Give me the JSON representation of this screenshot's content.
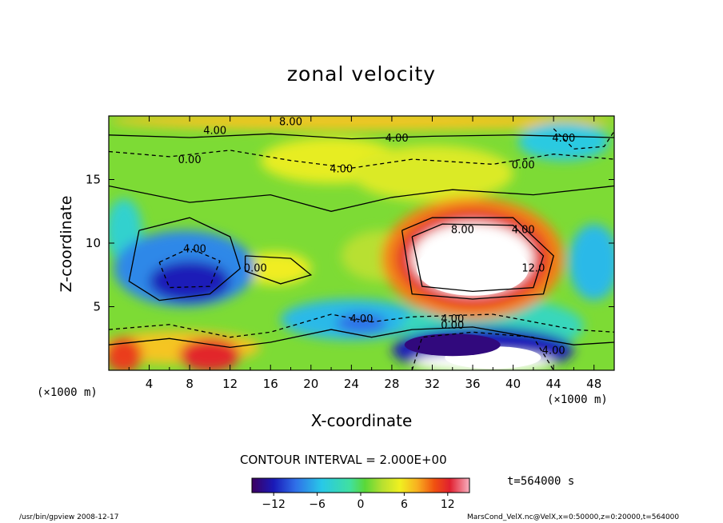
{
  "chart_data": {
    "type": "heatmap",
    "title": "zonal velocity",
    "xlabel": "X-coordinate",
    "ylabel": "Z-coordinate",
    "x_unit": "(×1000 m)",
    "y_unit": "(×1000 m)",
    "xlim": [
      0,
      50
    ],
    "ylim": [
      0,
      20
    ],
    "x_ticks": [
      4,
      8,
      12,
      16,
      20,
      24,
      28,
      32,
      36,
      40,
      44,
      48
    ],
    "y_ticks": [
      5,
      10,
      15
    ],
    "contour_interval_label": "CONTOUR INTERVAL = 2.000E+00",
    "time_label": "t=564000 s",
    "colorbar": {
      "min": -15,
      "max": 15,
      "ticks": [
        -12,
        -6,
        0,
        6,
        12
      ]
    },
    "contour_labels": [
      {
        "text": "8.00",
        "x": 18,
        "z": 19.5
      },
      {
        "text": "4.00",
        "x": 10.5,
        "z": 18.8
      },
      {
        "text": "4.00",
        "x": 28.5,
        "z": 18.2
      },
      {
        "text": "4.00",
        "x": 45,
        "z": 18.2
      },
      {
        "text": "0.00",
        "x": 8,
        "z": 16.5
      },
      {
        "text": "4.00",
        "x": 23,
        "z": 15.8
      },
      {
        "text": "0.00",
        "x": 41,
        "z": 16.1
      },
      {
        "text": "4.00",
        "x": 8.5,
        "z": 9.5
      },
      {
        "text": "0.00",
        "x": 14.5,
        "z": 8
      },
      {
        "text": "8.00",
        "x": 35,
        "z": 11
      },
      {
        "text": "4.00",
        "x": 41,
        "z": 11
      },
      {
        "text": "12.0",
        "x": 42,
        "z": 8
      },
      {
        "text": "4.00",
        "x": 25,
        "z": 4
      },
      {
        "text": "4.00",
        "x": 34,
        "z": 4
      },
      {
        "text": "0.00",
        "x": 34,
        "z": 3.5
      },
      {
        "text": "4.00",
        "x": 44,
        "z": 1.5
      }
    ],
    "cells": [
      {
        "x": 36,
        "z": 8,
        "value": 15
      },
      {
        "x": 38,
        "z": 1,
        "value": 15
      },
      {
        "x": 8,
        "z": 7.5,
        "value": -12
      },
      {
        "x": 34,
        "z": 2,
        "value": -14
      },
      {
        "x": 2,
        "z": 0.8,
        "value": 12
      },
      {
        "x": 10,
        "z": 1,
        "value": 13
      },
      {
        "x": 22,
        "z": 19,
        "value": 8
      },
      {
        "x": 30,
        "z": 15.5,
        "value": 5
      },
      {
        "x": 16,
        "z": 8,
        "value": 5
      },
      {
        "x": 46,
        "z": 18,
        "value": -6
      },
      {
        "x": 48,
        "z": 8,
        "value": -6
      },
      {
        "x": 24,
        "z": 3.5,
        "value": -8
      }
    ]
  },
  "footer": {
    "left": "/usr/bin/gpview   2008-12-17",
    "right": "MarsCond_VelX.nc@VelX,x=0:50000,z=0:20000,t=564000"
  }
}
